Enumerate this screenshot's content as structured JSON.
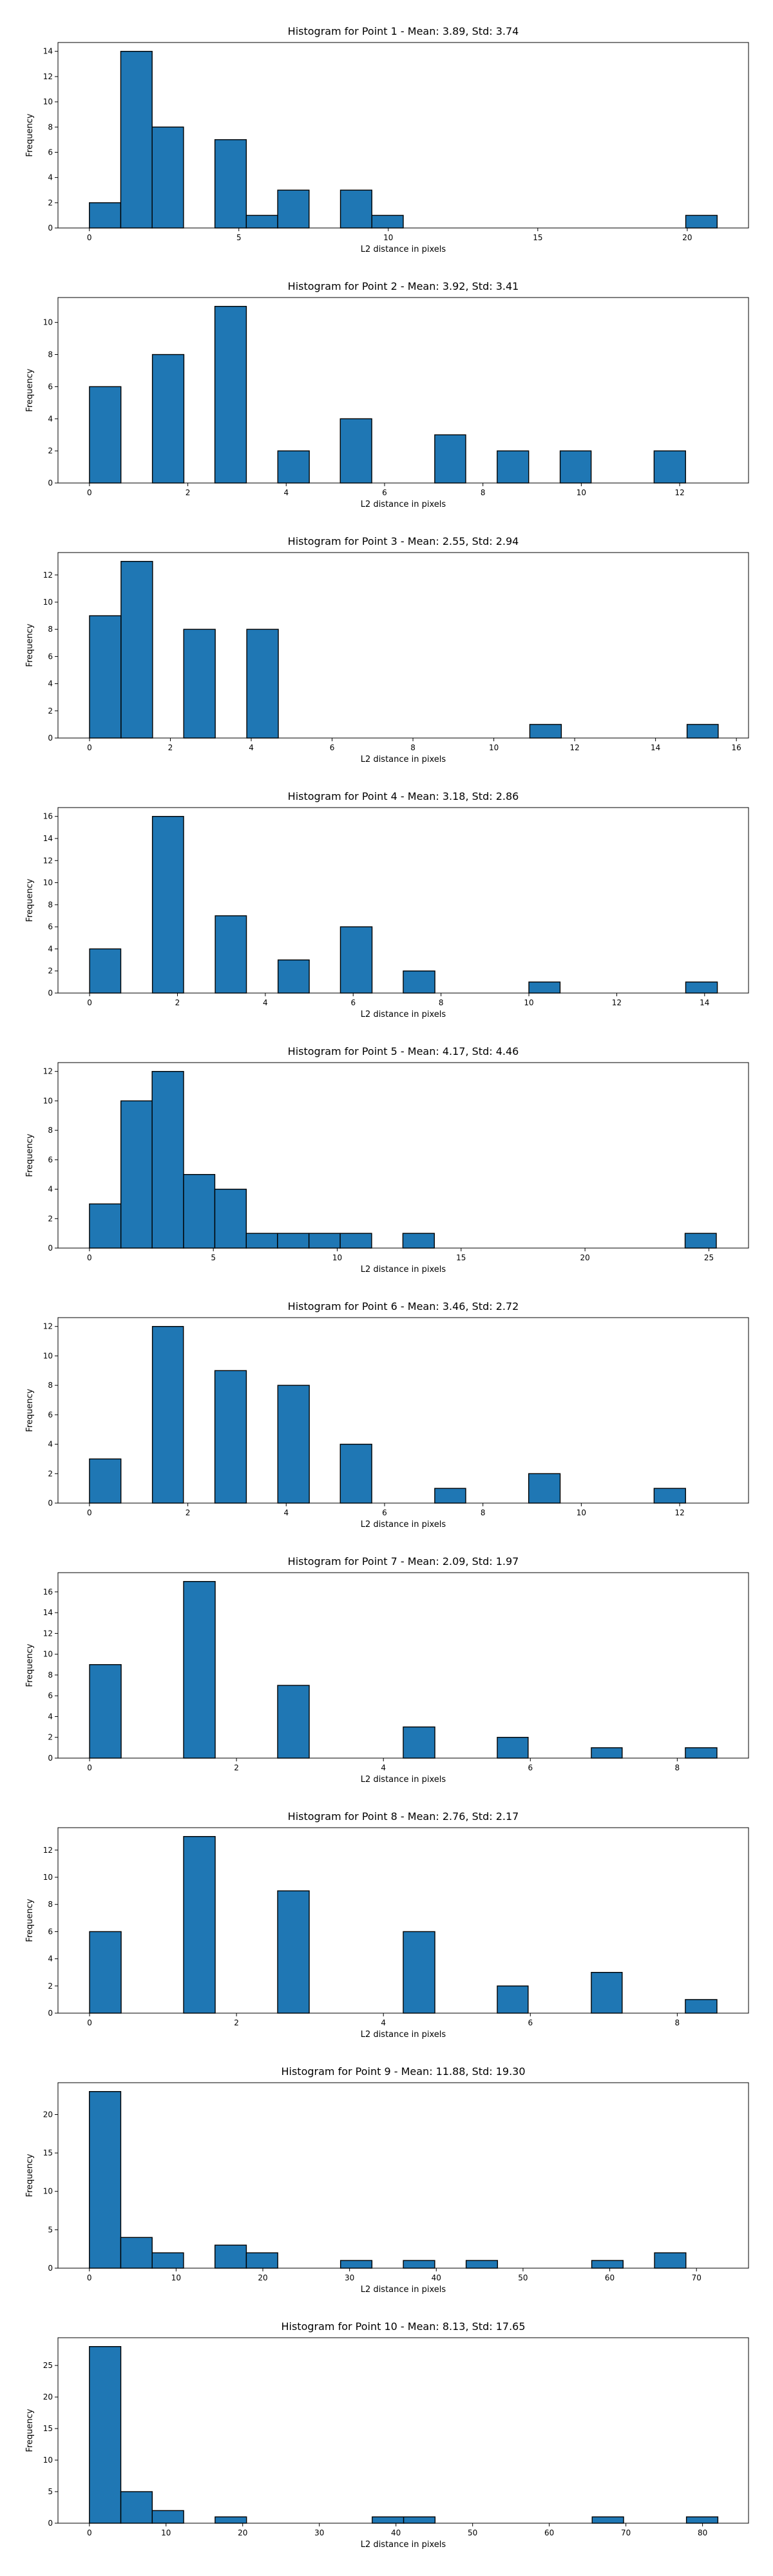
{
  "chart_data": [
    {
      "type": "bar",
      "title": "Histogram for Point 1 - Mean: 3.89, Std: 3.74",
      "xlabel": "L2 distance in pixels",
      "ylabel": "Frequency",
      "xlim": [
        -1.05,
        22.05
      ],
      "ylim": [
        0,
        14.7
      ],
      "xticks": [
        0,
        5,
        10,
        15,
        20
      ],
      "yticks": [
        0,
        2,
        4,
        6,
        8,
        10,
        12,
        14
      ],
      "bins": [
        [
          0.0,
          1.05,
          2
        ],
        [
          1.05,
          2.1,
          14
        ],
        [
          2.1,
          3.15,
          8
        ],
        [
          4.2,
          5.25,
          7
        ],
        [
          5.25,
          6.3,
          1
        ],
        [
          6.3,
          7.35,
          3
        ],
        [
          8.4,
          9.45,
          3
        ],
        [
          9.45,
          10.5,
          1
        ],
        [
          19.95,
          21.0,
          1
        ]
      ]
    },
    {
      "type": "bar",
      "title": "Histogram for Point 2 - Mean: 3.92, Std: 3.41",
      "xlabel": "L2 distance in pixels",
      "ylabel": "Frequency",
      "xlim": [
        -0.64,
        13.4
      ],
      "ylim": [
        0,
        11.55
      ],
      "xticks": [
        0,
        2,
        4,
        6,
        8,
        10,
        12
      ],
      "yticks": [
        0,
        2,
        4,
        6,
        8,
        10
      ],
      "bins": [
        [
          0.0,
          0.64,
          6
        ],
        [
          1.28,
          1.92,
          8
        ],
        [
          2.55,
          3.19,
          11
        ],
        [
          3.83,
          4.47,
          2
        ],
        [
          5.1,
          5.74,
          4
        ],
        [
          7.02,
          7.65,
          3
        ],
        [
          8.29,
          8.93,
          2
        ],
        [
          9.57,
          10.2,
          2
        ],
        [
          11.48,
          12.12,
          2
        ]
      ]
    },
    {
      "type": "bar",
      "title": "Histogram for Point 3 - Mean: 2.55, Std: 2.94",
      "xlabel": "L2 distance in pixels",
      "ylabel": "Frequency",
      "xlim": [
        -0.78,
        16.3
      ],
      "ylim": [
        0,
        13.65
      ],
      "xticks": [
        0,
        2,
        4,
        6,
        8,
        10,
        12,
        14,
        16
      ],
      "yticks": [
        0,
        2,
        4,
        6,
        8,
        10,
        12
      ],
      "bins": [
        [
          0.0,
          0.78,
          9
        ],
        [
          0.78,
          1.56,
          13
        ],
        [
          2.33,
          3.11,
          8
        ],
        [
          3.89,
          4.67,
          8
        ],
        [
          10.89,
          11.67,
          1
        ],
        [
          14.78,
          15.55,
          1
        ]
      ]
    },
    {
      "type": "bar",
      "title": "Histogram for Point 4 - Mean: 3.18, Std: 2.86",
      "xlabel": "L2 distance in pixels",
      "ylabel": "Frequency",
      "xlim": [
        -0.72,
        15.0
      ],
      "ylim": [
        0,
        16.8
      ],
      "xticks": [
        0,
        2,
        4,
        6,
        8,
        10,
        12,
        14
      ],
      "yticks": [
        0,
        2,
        4,
        6,
        8,
        10,
        12,
        14,
        16
      ],
      "bins": [
        [
          0.0,
          0.71,
          4
        ],
        [
          1.43,
          2.14,
          16
        ],
        [
          2.86,
          3.57,
          7
        ],
        [
          4.29,
          5.0,
          3
        ],
        [
          5.71,
          6.43,
          6
        ],
        [
          7.14,
          7.86,
          2
        ],
        [
          10.0,
          10.71,
          1
        ],
        [
          13.57,
          14.29,
          1
        ]
      ]
    },
    {
      "type": "bar",
      "title": "Histogram for Point 5 - Mean: 4.17, Std: 4.46",
      "xlabel": "L2 distance in pixels",
      "ylabel": "Frequency",
      "xlim": [
        -1.27,
        26.6
      ],
      "ylim": [
        0,
        12.6
      ],
      "xticks": [
        0,
        5,
        10,
        15,
        20,
        25
      ],
      "yticks": [
        0,
        2,
        4,
        6,
        8,
        10,
        12
      ],
      "bins": [
        [
          0.0,
          1.27,
          3
        ],
        [
          1.27,
          2.53,
          10
        ],
        [
          2.53,
          3.8,
          12
        ],
        [
          3.8,
          5.06,
          5
        ],
        [
          5.06,
          6.33,
          4
        ],
        [
          6.33,
          7.59,
          1
        ],
        [
          7.59,
          8.86,
          1
        ],
        [
          8.86,
          10.12,
          1
        ],
        [
          10.12,
          11.39,
          1
        ],
        [
          12.65,
          13.92,
          1
        ],
        [
          24.04,
          25.3,
          1
        ]
      ]
    },
    {
      "type": "bar",
      "title": "Histogram for Point 6 - Mean: 3.46, Std: 2.72",
      "xlabel": "L2 distance in pixels",
      "ylabel": "Frequency",
      "xlim": [
        -0.64,
        13.4
      ],
      "ylim": [
        0,
        12.6
      ],
      "xticks": [
        0,
        2,
        4,
        6,
        8,
        10,
        12
      ],
      "yticks": [
        0,
        2,
        4,
        6,
        8,
        10,
        12
      ],
      "bins": [
        [
          0.0,
          0.64,
          3
        ],
        [
          1.28,
          1.91,
          12
        ],
        [
          2.55,
          3.19,
          9
        ],
        [
          3.83,
          4.47,
          8
        ],
        [
          5.1,
          5.74,
          4
        ],
        [
          7.02,
          7.65,
          1
        ],
        [
          8.93,
          9.57,
          2
        ],
        [
          11.48,
          12.12,
          1
        ]
      ]
    },
    {
      "type": "bar",
      "title": "Histogram for Point 7 - Mean: 2.09, Std: 1.97",
      "xlabel": "L2 distance in pixels",
      "ylabel": "Frequency",
      "xlim": [
        -0.43,
        8.97
      ],
      "ylim": [
        0,
        17.85
      ],
      "xticks": [
        0,
        2,
        4,
        6,
        8
      ],
      "yticks": [
        0,
        2,
        4,
        6,
        8,
        10,
        12,
        14,
        16
      ],
      "bins": [
        [
          0.0,
          0.43,
          9
        ],
        [
          1.28,
          1.71,
          17
        ],
        [
          2.56,
          2.99,
          7
        ],
        [
          4.27,
          4.7,
          3
        ],
        [
          5.55,
          5.97,
          2
        ],
        [
          6.83,
          7.25,
          1
        ],
        [
          8.11,
          8.54,
          1
        ]
      ]
    },
    {
      "type": "bar",
      "title": "Histogram for Point 8 - Mean: 2.76, Std: 2.17",
      "xlabel": "L2 distance in pixels",
      "ylabel": "Frequency",
      "xlim": [
        -0.43,
        8.97
      ],
      "ylim": [
        0,
        13.65
      ],
      "xticks": [
        0,
        2,
        4,
        6,
        8
      ],
      "yticks": [
        0,
        2,
        4,
        6,
        8,
        10,
        12
      ],
      "bins": [
        [
          0.0,
          0.43,
          6
        ],
        [
          1.28,
          1.71,
          13
        ],
        [
          2.56,
          2.99,
          9
        ],
        [
          4.27,
          4.7,
          6
        ],
        [
          5.55,
          5.97,
          2
        ],
        [
          6.83,
          7.25,
          3
        ],
        [
          8.11,
          8.54,
          1
        ]
      ]
    },
    {
      "type": "bar",
      "title": "Histogram for Point 9 - Mean: 11.88, Std: 19.30",
      "xlabel": "L2 distance in pixels",
      "ylabel": "Frequency",
      "xlim": [
        -3.62,
        76.0
      ],
      "ylim": [
        0,
        24.15
      ],
      "xticks": [
        0,
        10,
        20,
        30,
        40,
        50,
        60,
        70
      ],
      "yticks": [
        0,
        5,
        10,
        15,
        20
      ],
      "bins": [
        [
          0.0,
          3.62,
          23
        ],
        [
          3.62,
          7.24,
          4
        ],
        [
          7.24,
          10.86,
          2
        ],
        [
          14.48,
          18.1,
          3
        ],
        [
          18.1,
          21.72,
          2
        ],
        [
          28.96,
          32.58,
          1
        ],
        [
          36.2,
          39.82,
          1
        ],
        [
          43.44,
          47.06,
          1
        ],
        [
          57.92,
          61.54,
          1
        ],
        [
          65.16,
          68.78,
          2
        ]
      ]
    },
    {
      "type": "bar",
      "title": "Histogram for Point 10 - Mean: 8.13, Std: 17.65",
      "xlabel": "L2 distance in pixels",
      "ylabel": "Frequency",
      "xlim": [
        -4.1,
        86.0
      ],
      "ylim": [
        0,
        29.4
      ],
      "xticks": [
        0,
        10,
        20,
        30,
        40,
        50,
        60,
        70,
        80
      ],
      "yticks": [
        0,
        5,
        10,
        15,
        20,
        25
      ],
      "bins": [
        [
          0.0,
          4.1,
          28
        ],
        [
          4.1,
          8.2,
          5
        ],
        [
          8.2,
          12.3,
          2
        ],
        [
          16.4,
          20.5,
          1
        ],
        [
          36.9,
          41.0,
          1
        ],
        [
          41.0,
          45.1,
          1
        ],
        [
          65.6,
          69.7,
          1
        ],
        [
          77.9,
          82.0,
          1
        ]
      ]
    }
  ]
}
